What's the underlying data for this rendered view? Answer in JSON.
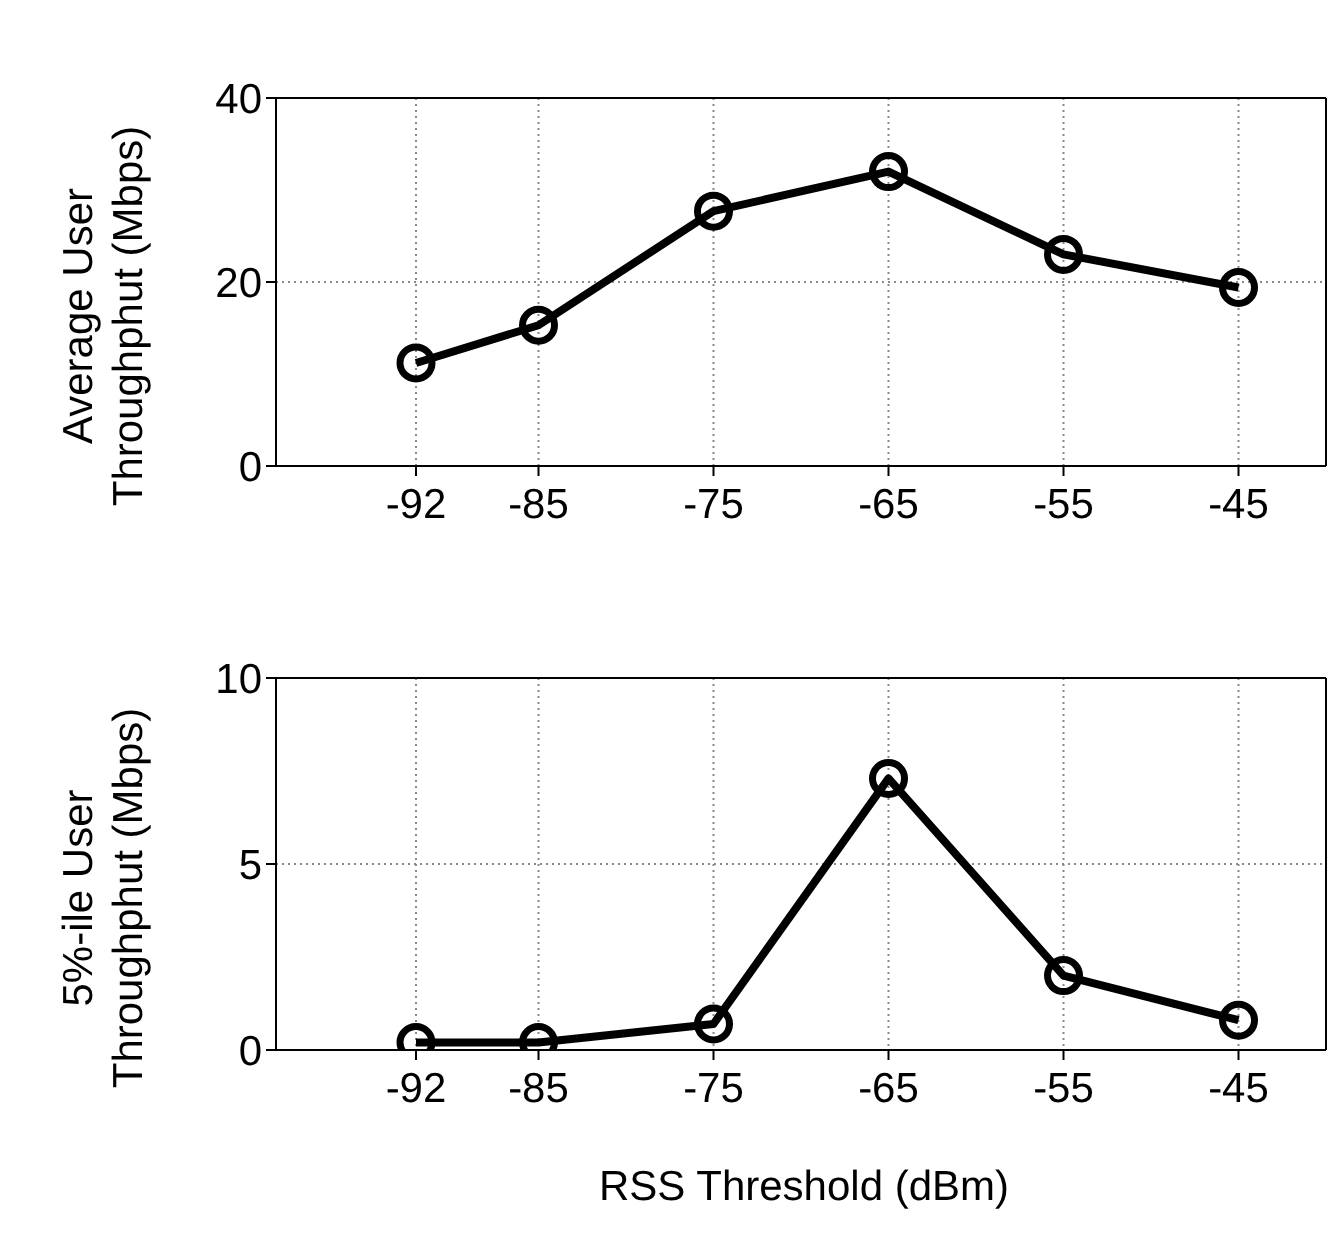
{
  "chart_data": [
    {
      "type": "line",
      "ylabel": "Average User\nThroughphut (Mbps)",
      "x": [
        -92,
        -85,
        -75,
        -65,
        -55,
        -45
      ],
      "xlim": [
        -100,
        -40
      ],
      "xticks": [
        -92,
        -85,
        -75,
        -65,
        -55,
        -45
      ],
      "ylim": [
        0,
        40
      ],
      "yticks": [
        0,
        20,
        40
      ],
      "grid": true,
      "marker": "circle",
      "line_style": "solid",
      "series": [
        {
          "color": "#000000",
          "values": [
            11.2,
            15.3,
            27.7,
            32,
            23,
            19.4
          ]
        }
      ]
    },
    {
      "type": "line",
      "ylabel": "5%-ile User\nThroughphut (Mbps)",
      "xlabel": "RSS Threshold (dBm)",
      "x": [
        -92,
        -85,
        -75,
        -65,
        -55,
        -45
      ],
      "xlim": [
        -100,
        -40
      ],
      "xticks": [
        -92,
        -85,
        -75,
        -65,
        -55,
        -45
      ],
      "ylim": [
        0,
        10
      ],
      "yticks": [
        0,
        5,
        10
      ],
      "grid": true,
      "marker": "circle",
      "line_style": "solid",
      "series": [
        {
          "color": "#000000",
          "values": [
            0.2,
            0.2,
            0.7,
            7.3,
            2.0,
            0.8
          ]
        }
      ]
    }
  ]
}
